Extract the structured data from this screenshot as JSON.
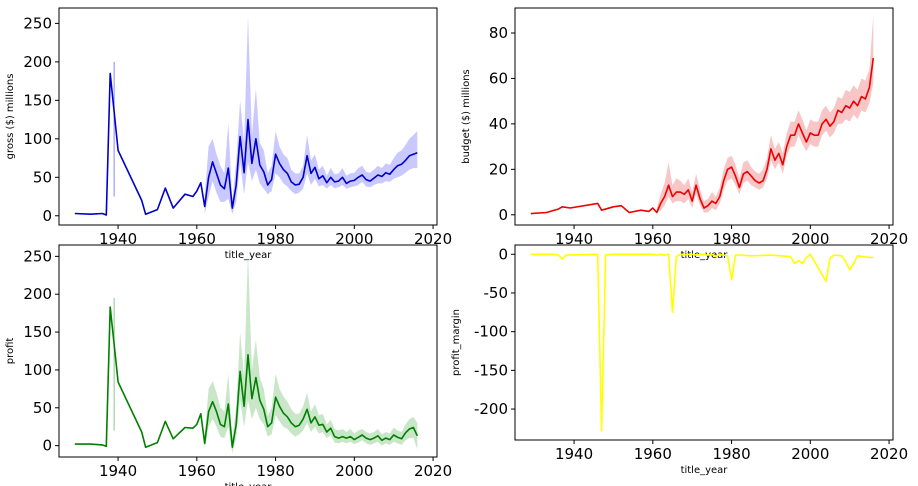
{
  "chart_data": [
    {
      "type": "line",
      "xlabel": "title_year",
      "ylabel": "gross ($) millions",
      "xlim": [
        1925,
        2021
      ],
      "ylim": [
        -12,
        270
      ],
      "xticks": [
        "1940",
        "1960",
        "1980",
        "2000",
        "2020"
      ],
      "yticks": [
        "0",
        "50",
        "100",
        "150",
        "200",
        "250"
      ],
      "grid": false,
      "color": "#0000cc",
      "band_color": "#8888ff",
      "series": [
        {
          "x": [
            1929,
            1933,
            1936,
            1937,
            1938,
            1940,
            1946,
            1947,
            1950,
            1952,
            1954,
            1957,
            1959,
            1960,
            1961,
            1962,
            1963,
            1964,
            1965,
            1966,
            1967,
            1968,
            1969,
            1970,
            1971,
            1972,
            1973,
            1974,
            1975,
            1976,
            1977,
            1978,
            1979,
            1980,
            1981,
            1982,
            1983,
            1984,
            1985,
            1986,
            1987,
            1988,
            1989,
            1990,
            1991,
            1992,
            1993,
            1994,
            1995,
            1996,
            1997,
            1998,
            1999,
            2000,
            2001,
            2002,
            2003,
            2004,
            2005,
            2006,
            2007,
            2008,
            2009,
            2010,
            2011,
            2012,
            2013,
            2014,
            2015,
            2016
          ],
          "y": [
            3,
            2,
            3,
            1,
            185,
            85,
            20,
            2,
            8,
            36,
            10,
            28,
            25,
            32,
            43,
            12,
            50,
            70,
            55,
            40,
            35,
            62,
            10,
            40,
            103,
            56,
            125,
            68,
            100,
            66,
            57,
            40,
            47,
            80,
            68,
            60,
            55,
            44,
            40,
            41,
            50,
            78,
            55,
            63,
            48,
            52,
            43,
            50,
            44,
            45,
            50,
            42,
            45,
            46,
            50,
            53,
            47,
            45,
            49,
            53,
            51,
            56,
            54,
            60,
            65,
            67,
            72,
            78,
            80,
            82
          ],
          "lower": [
            null,
            null,
            null,
            null,
            null,
            null,
            null,
            null,
            null,
            null,
            null,
            null,
            null,
            null,
            null,
            2,
            25,
            45,
            30,
            18,
            18,
            22,
            2,
            18,
            70,
            28,
            70,
            45,
            60,
            42,
            35,
            28,
            32,
            55,
            50,
            42,
            38,
            32,
            28,
            30,
            35,
            55,
            40,
            48,
            38,
            40,
            35,
            40,
            36,
            37,
            40,
            35,
            37,
            38,
            40,
            44,
            38,
            37,
            40,
            42,
            42,
            45,
            44,
            48,
            50,
            52,
            56,
            60,
            62,
            62
          ],
          "upper": [
            null,
            null,
            null,
            null,
            null,
            null,
            null,
            null,
            null,
            null,
            null,
            null,
            null,
            null,
            null,
            25,
            90,
            100,
            80,
            65,
            55,
            120,
            20,
            70,
            150,
            95,
            260,
            105,
            165,
            95,
            85,
            55,
            65,
            110,
            90,
            80,
            75,
            60,
            55,
            55,
            65,
            105,
            72,
            80,
            60,
            65,
            52,
            62,
            54,
            55,
            62,
            52,
            55,
            56,
            62,
            65,
            57,
            56,
            60,
            65,
            62,
            68,
            66,
            75,
            82,
            85,
            92,
            100,
            105,
            110
          ]
        }
      ],
      "vline": {
        "x": 1939,
        "y0": 25,
        "y1": 200
      }
    },
    {
      "type": "line",
      "xlabel": "title_year",
      "ylabel": "budget ($) millions",
      "xlim": [
        1925,
        2021
      ],
      "ylim": [
        -4.5,
        91
      ],
      "xticks": [
        "1940",
        "1960",
        "1980",
        "2000",
        "2020"
      ],
      "yticks": [
        "0",
        "20",
        "40",
        "60",
        "80"
      ],
      "grid": false,
      "color": "#ee0000",
      "band_color": "#f08080",
      "series": [
        {
          "x": [
            1929,
            1933,
            1936,
            1937,
            1939,
            1946,
            1947,
            1950,
            1952,
            1954,
            1957,
            1959,
            1960,
            1961,
            1962,
            1963,
            1964,
            1965,
            1966,
            1967,
            1968,
            1969,
            1970,
            1971,
            1972,
            1973,
            1974,
            1975,
            1976,
            1977,
            1978,
            1979,
            1980,
            1981,
            1982,
            1983,
            1984,
            1985,
            1986,
            1987,
            1988,
            1989,
            1990,
            1991,
            1992,
            1993,
            1994,
            1995,
            1996,
            1997,
            1998,
            1999,
            2000,
            2001,
            2002,
            2003,
            2004,
            2005,
            2006,
            2007,
            2008,
            2009,
            2010,
            2011,
            2012,
            2013,
            2014,
            2015,
            2016
          ],
          "y": [
            0.5,
            1,
            2.5,
            3.5,
            3,
            5,
            2,
            3.5,
            4,
            1,
            2,
            1.5,
            3,
            1,
            5,
            8,
            13,
            8,
            10,
            10,
            9,
            11,
            6,
            13,
            7,
            3,
            4,
            6,
            5,
            8,
            15,
            20,
            21,
            17,
            12,
            18,
            19,
            17,
            15,
            14,
            15,
            20,
            29,
            24,
            27,
            22,
            30,
            35,
            35,
            40,
            36,
            32,
            36,
            35,
            35,
            40,
            42,
            39,
            41,
            46,
            45,
            48,
            47,
            50,
            48,
            52,
            51,
            56,
            69
          ],
          "lower": [
            null,
            null,
            null,
            null,
            null,
            null,
            null,
            null,
            null,
            null,
            null,
            null,
            null,
            1,
            2,
            4,
            8,
            5,
            6,
            6,
            5,
            7,
            3,
            9,
            4,
            1,
            1,
            3,
            2,
            5,
            11,
            15,
            16,
            13,
            9,
            14,
            15,
            13,
            12,
            11,
            12,
            16,
            24,
            20,
            23,
            18,
            26,
            30,
            30,
            35,
            31,
            28,
            31,
            30,
            30,
            35,
            37,
            34,
            36,
            40,
            40,
            42,
            41,
            44,
            42,
            46,
            45,
            49,
            58
          ],
          "upper": [
            null,
            null,
            null,
            null,
            null,
            null,
            null,
            null,
            null,
            null,
            null,
            null,
            null,
            3,
            9,
            14,
            23,
            13,
            16,
            15,
            13,
            16,
            10,
            18,
            11,
            6,
            7,
            10,
            8,
            12,
            20,
            25,
            26,
            22,
            16,
            23,
            24,
            21,
            19,
            18,
            20,
            25,
            35,
            29,
            32,
            27,
            36,
            41,
            41,
            46,
            42,
            37,
            42,
            41,
            41,
            46,
            48,
            45,
            47,
            52,
            51,
            55,
            54,
            57,
            55,
            60,
            59,
            64,
            88
          ]
        }
      ]
    },
    {
      "type": "line",
      "xlabel": "title_year",
      "ylabel": "profit",
      "xlim": [
        1925,
        2021
      ],
      "ylim": [
        -15,
        265
      ],
      "xticks": [
        "1940",
        "1960",
        "1980",
        "2000",
        "2020"
      ],
      "yticks": [
        "0",
        "50",
        "100",
        "150",
        "200",
        "250"
      ],
      "grid": false,
      "color": "#008000",
      "band_color": "#88c888",
      "series": [
        {
          "x": [
            1929,
            1933,
            1936,
            1937,
            1938,
            1940,
            1946,
            1947,
            1950,
            1952,
            1954,
            1957,
            1959,
            1960,
            1961,
            1962,
            1963,
            1964,
            1965,
            1966,
            1967,
            1968,
            1969,
            1970,
            1971,
            1972,
            1973,
            1974,
            1975,
            1976,
            1977,
            1978,
            1979,
            1980,
            1981,
            1982,
            1983,
            1984,
            1985,
            1986,
            1987,
            1988,
            1989,
            1990,
            1991,
            1992,
            1993,
            1994,
            1995,
            1996,
            1997,
            1998,
            1999,
            2000,
            2001,
            2002,
            2003,
            2004,
            2005,
            2006,
            2007,
            2008,
            2009,
            2010,
            2011,
            2012,
            2013,
            2014,
            2015,
            2016
          ],
          "y": [
            2,
            2,
            1,
            -1,
            183,
            84,
            18,
            -2,
            4,
            32,
            9,
            24,
            23,
            28,
            42,
            3,
            45,
            58,
            45,
            28,
            25,
            55,
            -2,
            28,
            98,
            52,
            120,
            62,
            90,
            60,
            48,
            25,
            30,
            64,
            52,
            43,
            38,
            30,
            25,
            27,
            35,
            48,
            30,
            38,
            27,
            28,
            18,
            23,
            12,
            10,
            12,
            10,
            12,
            8,
            11,
            14,
            10,
            8,
            10,
            13,
            7,
            10,
            8,
            14,
            11,
            9,
            17,
            22,
            24,
            13
          ],
          "lower": [
            null,
            null,
            null,
            null,
            null,
            null,
            null,
            null,
            null,
            null,
            null,
            null,
            null,
            null,
            null,
            -5,
            25,
            35,
            25,
            12,
            10,
            25,
            -10,
            10,
            60,
            25,
            60,
            35,
            50,
            35,
            28,
            12,
            15,
            40,
            32,
            25,
            22,
            16,
            12,
            15,
            20,
            30,
            18,
            25,
            16,
            18,
            10,
            14,
            4,
            3,
            5,
            3,
            5,
            2,
            4,
            7,
            3,
            1,
            3,
            5,
            0,
            3,
            1,
            5,
            3,
            1,
            7,
            10,
            10,
            -5
          ],
          "upper": [
            null,
            null,
            null,
            null,
            null,
            null,
            null,
            null,
            null,
            null,
            null,
            null,
            null,
            null,
            null,
            15,
            75,
            85,
            70,
            50,
            45,
            95,
            10,
            50,
            150,
            90,
            255,
            100,
            140,
            90,
            75,
            40,
            50,
            95,
            75,
            65,
            58,
            48,
            42,
            42,
            52,
            70,
            45,
            55,
            40,
            42,
            28,
            34,
            22,
            20,
            22,
            18,
            22,
            16,
            20,
            22,
            18,
            16,
            18,
            22,
            15,
            18,
            16,
            24,
            20,
            18,
            28,
            35,
            38,
            30
          ]
        }
      ],
      "vline": {
        "x": 1939,
        "y0": 20,
        "y1": 195
      }
    },
    {
      "type": "line",
      "xlabel": "title_year",
      "ylabel": "profit_margin",
      "xlim": [
        1925,
        2021
      ],
      "ylim": [
        -240,
        12
      ],
      "xticks": [
        "1940",
        "1960",
        "1980",
        "2000",
        "2020"
      ],
      "yticks": [
        "0",
        "-50",
        "-100",
        "-150",
        "-200"
      ],
      "grid": false,
      "color": "#ffff00",
      "band_color": "#ffff99",
      "series": [
        {
          "x": [
            1929,
            1935,
            1936,
            1937,
            1938,
            1946,
            1947,
            1948,
            1950,
            1955,
            1960,
            1961,
            1962,
            1963,
            1964,
            1965,
            1966,
            1967,
            1968,
            1969,
            1970,
            1971,
            1972,
            1973,
            1974,
            1975,
            1976,
            1977,
            1978,
            1979,
            1980,
            1981,
            1982,
            1985,
            1990,
            1995,
            1996,
            1997,
            1998,
            1999,
            2000,
            2004,
            2005,
            2006,
            2008,
            2009,
            2010,
            2011,
            2012,
            2015,
            2016
          ],
          "y": [
            0,
            0,
            -1,
            -6,
            -1,
            0,
            -228,
            -1,
            0,
            0,
            0,
            -1,
            0,
            -1,
            0,
            -75,
            -3,
            0,
            -1,
            0,
            0,
            -1,
            0,
            0,
            -1,
            0,
            -3,
            0,
            -1,
            -2,
            -33,
            -1,
            -1,
            -2,
            -1,
            -3,
            -12,
            -8,
            -12,
            -4,
            0,
            -35,
            -5,
            -1,
            -2,
            -10,
            -20,
            -12,
            -2,
            -4,
            -4
          ]
        }
      ]
    }
  ]
}
